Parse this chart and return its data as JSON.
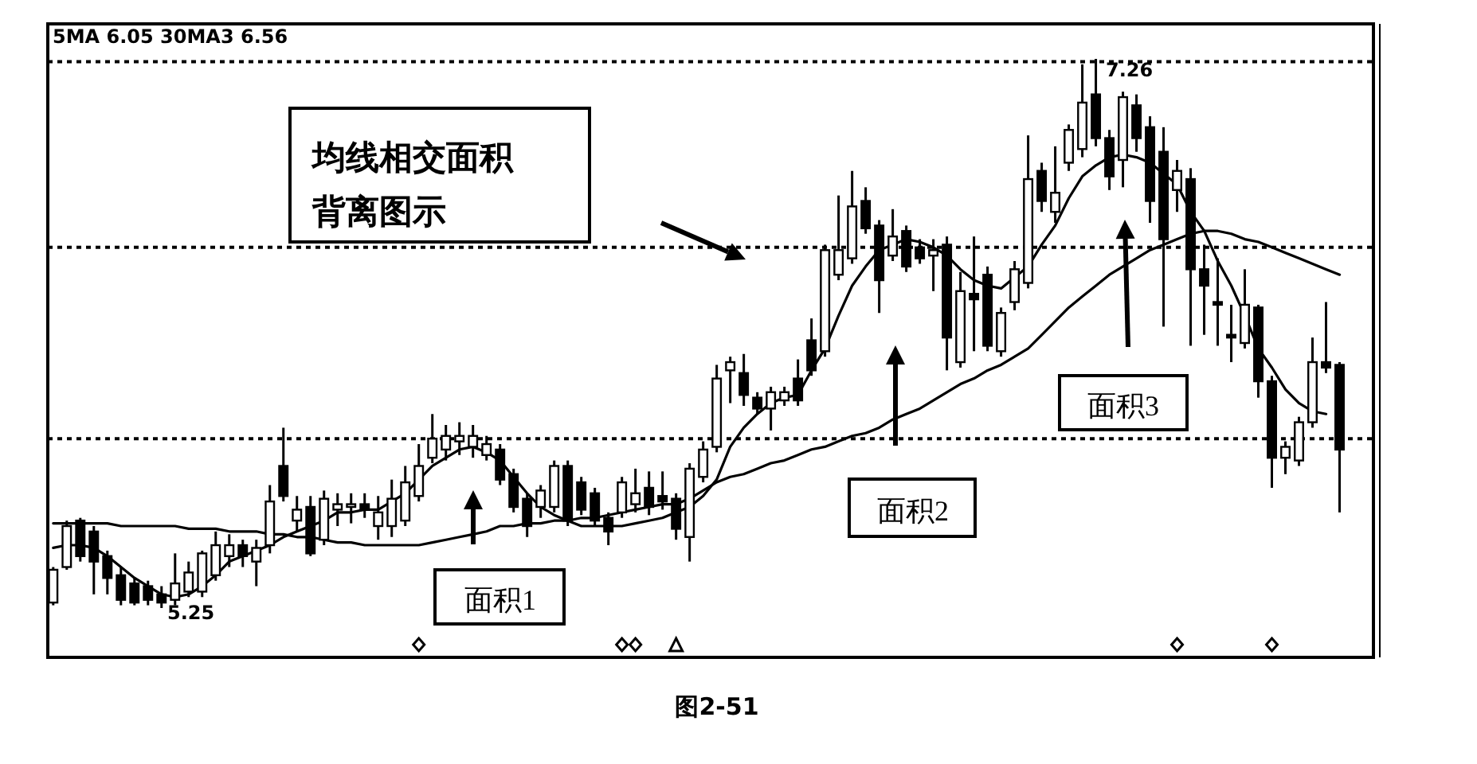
{
  "chart_data": {
    "type": "candlestick",
    "categories": [
      null,
      null,
      null,
      null,
      null,
      null,
      null,
      null,
      null,
      null,
      null,
      null,
      null,
      null,
      null,
      null,
      null,
      null,
      null,
      null,
      null,
      null,
      null,
      null,
      null,
      null,
      null,
      null,
      null,
      null,
      null,
      null,
      null,
      null,
      null,
      null,
      null,
      null,
      null,
      null,
      null,
      null,
      null,
      null,
      null,
      null,
      null,
      null,
      null,
      null,
      null,
      null,
      null,
      null,
      null,
      null,
      null,
      null,
      null,
      null,
      null,
      null,
      null,
      null,
      null,
      null,
      null,
      null,
      null,
      null,
      null,
      null,
      null,
      null,
      null,
      null,
      null,
      null,
      null,
      null,
      null,
      null,
      null,
      null,
      null,
      null,
      null,
      null,
      null,
      null,
      null,
      null,
      null,
      null,
      null,
      null
    ],
    "ohlc": [
      [
        5.27,
        5.4,
        5.26,
        5.39
      ],
      [
        5.4,
        5.57,
        5.39,
        5.55
      ],
      [
        5.57,
        5.58,
        5.42,
        5.44
      ],
      [
        5.53,
        5.55,
        5.3,
        5.42
      ],
      [
        5.44,
        5.46,
        5.3,
        5.36
      ],
      [
        5.37,
        5.4,
        5.26,
        5.28
      ],
      [
        5.34,
        5.36,
        5.26,
        5.27
      ],
      [
        5.33,
        5.35,
        5.26,
        5.28
      ],
      [
        5.3,
        5.33,
        5.25,
        5.27
      ],
      [
        5.28,
        5.45,
        5.26,
        5.34
      ],
      [
        5.31,
        5.42,
        5.29,
        5.38
      ],
      [
        5.31,
        5.46,
        5.29,
        5.45
      ],
      [
        5.37,
        5.53,
        5.35,
        5.48
      ],
      [
        5.44,
        5.52,
        5.4,
        5.48
      ],
      [
        5.48,
        5.5,
        5.4,
        5.44
      ],
      [
        5.42,
        5.5,
        5.33,
        5.47
      ],
      [
        5.48,
        5.7,
        5.45,
        5.64
      ],
      [
        5.77,
        5.91,
        5.64,
        5.66
      ],
      [
        5.57,
        5.66,
        5.53,
        5.61
      ],
      [
        5.62,
        5.66,
        5.44,
        5.45
      ],
      [
        5.5,
        5.68,
        5.48,
        5.65
      ],
      [
        5.61,
        5.67,
        5.55,
        5.63
      ],
      [
        5.62,
        5.67,
        5.56,
        5.63
      ],
      [
        5.63,
        5.67,
        5.58,
        5.61
      ],
      [
        5.55,
        5.66,
        5.5,
        5.6
      ],
      [
        5.55,
        5.72,
        5.51,
        5.65
      ],
      [
        5.57,
        5.77,
        5.55,
        5.71
      ],
      [
        5.66,
        5.85,
        5.64,
        5.77
      ],
      [
        5.8,
        5.96,
        5.78,
        5.87
      ],
      [
        5.83,
        5.92,
        5.79,
        5.88
      ],
      [
        5.86,
        5.93,
        5.81,
        5.88
      ],
      [
        5.84,
        5.92,
        5.8,
        5.88
      ],
      [
        5.81,
        5.88,
        5.79,
        5.85
      ],
      [
        5.83,
        5.85,
        5.7,
        5.72
      ],
      [
        5.74,
        5.76,
        5.6,
        5.62
      ],
      [
        5.65,
        5.67,
        5.51,
        5.55
      ],
      [
        5.62,
        5.7,
        5.58,
        5.68
      ],
      [
        5.62,
        5.79,
        5.6,
        5.77
      ],
      [
        5.77,
        5.79,
        5.55,
        5.57
      ],
      [
        5.71,
        5.73,
        5.59,
        5.61
      ],
      [
        5.67,
        5.69,
        5.55,
        5.57
      ],
      [
        5.58,
        5.6,
        5.48,
        5.53
      ],
      [
        5.6,
        5.73,
        5.58,
        5.71
      ],
      [
        5.63,
        5.76,
        5.6,
        5.67
      ],
      [
        5.69,
        5.75,
        5.59,
        5.62
      ],
      [
        5.66,
        5.75,
        5.61,
        5.64
      ],
      [
        5.65,
        5.67,
        5.5,
        5.54
      ],
      [
        5.51,
        5.78,
        5.42,
        5.76
      ],
      [
        5.73,
        5.86,
        5.71,
        5.83
      ],
      [
        5.84,
        6.14,
        5.82,
        6.09
      ],
      [
        6.12,
        6.17,
        6.0,
        6.15
      ],
      [
        6.11,
        6.18,
        5.99,
        6.03
      ],
      [
        6.02,
        6.04,
        5.96,
        5.98
      ],
      [
        5.98,
        6.06,
        5.9,
        6.04
      ],
      [
        6.01,
        6.06,
        5.99,
        6.04
      ],
      [
        6.09,
        6.16,
        5.99,
        6.01
      ],
      [
        6.23,
        6.31,
        6.1,
        6.12
      ],
      [
        6.19,
        6.58,
        6.17,
        6.56
      ],
      [
        6.47,
        6.76,
        6.45,
        6.56
      ],
      [
        6.53,
        6.85,
        6.51,
        6.72
      ],
      [
        6.74,
        6.79,
        6.62,
        6.64
      ],
      [
        6.65,
        6.67,
        6.33,
        6.45
      ],
      [
        6.54,
        6.71,
        6.52,
        6.61
      ],
      [
        6.63,
        6.65,
        6.48,
        6.5
      ],
      [
        6.57,
        6.6,
        6.51,
        6.53
      ],
      [
        6.54,
        6.6,
        6.41,
        6.56
      ],
      [
        6.58,
        6.61,
        6.12,
        6.24
      ],
      [
        6.15,
        6.48,
        6.13,
        6.41
      ],
      [
        6.4,
        6.61,
        6.19,
        6.38
      ],
      [
        6.47,
        6.5,
        6.19,
        6.21
      ],
      [
        6.19,
        6.35,
        6.17,
        6.33
      ],
      [
        6.37,
        6.52,
        6.34,
        6.49
      ],
      [
        6.44,
        6.98,
        6.42,
        6.82
      ],
      [
        6.85,
        6.88,
        6.7,
        6.74
      ],
      [
        6.7,
        6.94,
        6.66,
        6.77
      ],
      [
        6.88,
        7.02,
        6.85,
        7.0
      ],
      [
        6.93,
        7.24,
        6.9,
        7.1
      ],
      [
        7.13,
        7.26,
        6.94,
        6.97
      ],
      [
        6.97,
        7.0,
        6.78,
        6.83
      ],
      [
        6.89,
        7.14,
        6.79,
        7.12
      ],
      [
        7.09,
        7.13,
        6.92,
        6.97
      ],
      [
        7.01,
        7.05,
        6.66,
        6.74
      ],
      [
        6.92,
        7.01,
        6.28,
        6.6
      ],
      [
        6.78,
        6.89,
        6.7,
        6.85
      ],
      [
        6.82,
        6.86,
        6.21,
        6.49
      ],
      [
        6.49,
        6.58,
        6.25,
        6.43
      ],
      [
        6.37,
        6.53,
        6.21,
        6.36
      ],
      [
        6.25,
        6.36,
        6.15,
        6.24
      ],
      [
        6.22,
        6.49,
        6.2,
        6.36
      ],
      [
        6.35,
        6.36,
        6.02,
        6.08
      ],
      [
        6.08,
        6.1,
        5.69,
        5.8
      ],
      [
        5.8,
        5.86,
        5.74,
        5.84
      ],
      [
        5.79,
        5.95,
        5.77,
        5.93
      ],
      [
        5.93,
        6.24,
        5.91,
        6.15
      ],
      [
        6.15,
        6.37,
        6.11,
        6.13
      ],
      [
        6.14,
        6.15,
        5.6,
        5.83
      ]
    ],
    "series": [
      {
        "type": "line",
        "color": "#000000",
        "values": [
          5.47,
          5.48,
          5.48,
          5.47,
          5.44,
          5.4,
          5.36,
          5.33,
          5.3,
          5.29,
          5.3,
          5.33,
          5.37,
          5.42,
          5.44,
          5.46,
          5.48,
          5.51,
          5.53,
          5.55,
          5.57,
          5.6,
          5.6,
          5.61,
          5.61,
          5.64,
          5.67,
          5.72,
          5.77,
          5.8,
          5.83,
          5.84,
          5.82,
          5.79,
          5.73,
          5.67,
          5.62,
          5.59,
          5.57,
          5.55,
          5.55,
          5.55,
          5.55,
          5.56,
          5.57,
          5.58,
          5.6,
          5.62,
          5.66,
          5.72,
          5.84,
          5.91,
          5.96,
          6.0,
          6.02,
          6.03,
          6.12,
          6.2,
          6.32,
          6.43,
          6.5,
          6.56,
          6.58,
          6.6,
          6.59,
          6.57,
          6.54,
          6.49,
          6.45,
          6.43,
          6.42,
          6.46,
          6.5,
          6.58,
          6.65,
          6.75,
          6.83,
          6.87,
          6.9,
          6.91,
          6.9,
          6.88,
          6.84,
          6.8,
          6.7,
          6.63,
          6.52,
          6.43,
          6.32,
          6.2,
          6.13,
          6.05,
          6.0,
          5.97,
          5.96,
          null
        ]
      },
      {
        "type": "line",
        "color": "#000000",
        "values": [
          5.56,
          5.56,
          5.56,
          5.56,
          5.56,
          5.55,
          5.55,
          5.55,
          5.55,
          5.55,
          5.54,
          5.54,
          5.54,
          5.53,
          5.53,
          5.53,
          5.52,
          5.52,
          5.51,
          5.51,
          5.5,
          5.49,
          5.49,
          5.48,
          5.48,
          5.48,
          5.48,
          5.48,
          5.49,
          5.5,
          5.51,
          5.52,
          5.53,
          5.55,
          5.55,
          5.56,
          5.56,
          5.57,
          5.57,
          5.58,
          5.58,
          5.59,
          5.6,
          5.61,
          5.62,
          5.63,
          5.63,
          5.65,
          5.68,
          5.71,
          5.73,
          5.74,
          5.76,
          5.78,
          5.79,
          5.81,
          5.83,
          5.84,
          5.86,
          5.88,
          5.89,
          5.91,
          5.94,
          5.96,
          5.98,
          6.01,
          6.04,
          6.07,
          6.09,
          6.12,
          6.14,
          6.17,
          6.2,
          6.25,
          6.3,
          6.35,
          6.39,
          6.43,
          6.47,
          6.5,
          6.53,
          6.56,
          6.58,
          6.6,
          6.62,
          6.63,
          6.63,
          6.62,
          6.6,
          6.59,
          6.57,
          6.55,
          6.53,
          6.51,
          6.49,
          6.47
        ]
      }
    ],
    "ref_lines": [
      {
        "axis": "y",
        "value": 7.25,
        "line_style": "dotted",
        "color": "#000000"
      },
      {
        "axis": "y",
        "value": 6.57,
        "line_style": "dotted",
        "color": "#000000"
      },
      {
        "axis": "y",
        "value": 5.87,
        "line_style": "dotted",
        "color": "#000000"
      }
    ],
    "annotations": [
      "5MA 6.05  30MA3 6.56",
      "均线相交面积",
      "背离图示",
      "7.26",
      "5.25",
      "面积1",
      "面积2",
      "面积3",
      "图2-51"
    ]
  }
}
